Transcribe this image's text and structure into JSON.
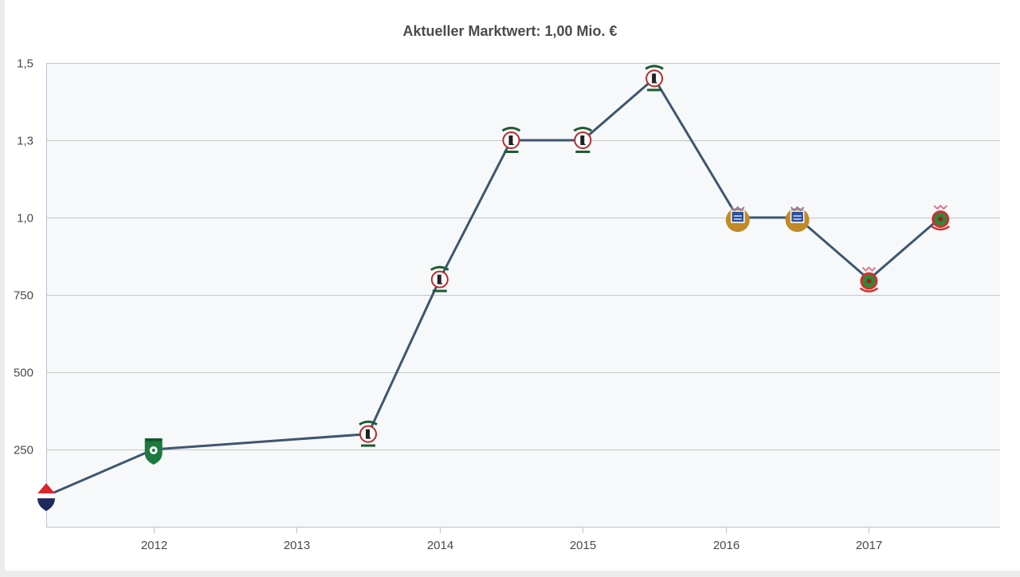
{
  "chart_data": {
    "type": "line",
    "title": "Aktueller Marktwert: 1,00 Mio. €",
    "xlabel": "",
    "ylabel": "",
    "x_ticks": [
      "2012",
      "2013",
      "2014",
      "2015",
      "2016",
      "2017"
    ],
    "y_ticks": [
      "250",
      "500",
      "750",
      "1,0",
      "1,3",
      "1,5"
    ],
    "y_tick_values": [
      250,
      500,
      750,
      1000,
      1250,
      1500
    ],
    "ylim": [
      0,
      1500
    ],
    "xlim": [
      "2011-04",
      "2017-12"
    ],
    "grid": true,
    "series": [
      {
        "values": [
          {
            "x": "2011-04",
            "y": 100,
            "club_icon": "red-white-blue-shield-icon"
          },
          {
            "x": "2012-01",
            "y": 250,
            "club_icon": "green-white-crest-icon"
          },
          {
            "x": "2013-07",
            "y": 300,
            "club_icon": "green-red-white-crest-icon"
          },
          {
            "x": "2014-01",
            "y": 800,
            "club_icon": "green-red-white-crest-icon"
          },
          {
            "x": "2014-07",
            "y": 1250,
            "club_icon": "green-red-white-crest-icon"
          },
          {
            "x": "2015-01",
            "y": 1250,
            "club_icon": "green-red-white-crest-icon"
          },
          {
            "x": "2015-07",
            "y": 1450,
            "club_icon": "green-red-white-crest-icon"
          },
          {
            "x": "2016-02",
            "y": 1000,
            "club_icon": "gold-blue-crest-icon"
          },
          {
            "x": "2016-07",
            "y": 1000,
            "club_icon": "gold-blue-crest-icon"
          },
          {
            "x": "2017-01",
            "y": 800,
            "club_icon": "red-green-crest-icon"
          },
          {
            "x": "2017-07",
            "y": 1000,
            "club_icon": "red-green-crest-icon"
          }
        ]
      }
    ]
  },
  "colors": {
    "line": "#3e5670",
    "plot_background": "#f7f8f9",
    "grid": "#c5c5c5",
    "text": "#4a4a4a"
  }
}
